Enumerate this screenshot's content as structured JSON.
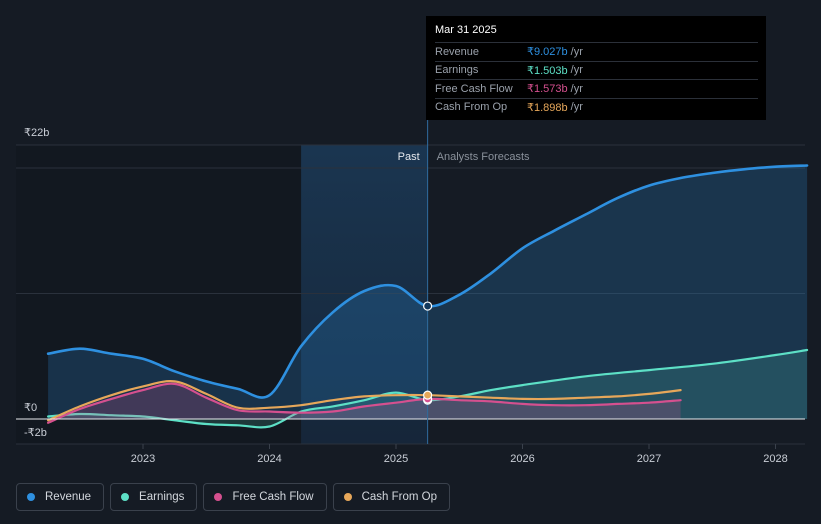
{
  "chart_data": {
    "type": "line",
    "currency_note": "₹ billions",
    "y_axis": {
      "top_label": "₹22b",
      "zero_label": "₹0",
      "bottom_label": "-₹2b",
      "ylim": [
        -2,
        22
      ]
    },
    "x_ticks": [
      "2023",
      "2024",
      "2025",
      "2026",
      "2027",
      "2028"
    ],
    "x_range": [
      2022.25,
      2028.25
    ],
    "past_label": "Past",
    "forecast_label": "Analysts Forecasts",
    "past_region": [
      2024.25,
      2025.25
    ],
    "series": [
      {
        "name": "Revenue",
        "color": "#2e90e0",
        "fill": true,
        "points": [
          [
            2022.25,
            5.2
          ],
          [
            2022.5,
            5.6
          ],
          [
            2022.75,
            5.2
          ],
          [
            2023.0,
            4.8
          ],
          [
            2023.25,
            3.8
          ],
          [
            2023.5,
            3.0
          ],
          [
            2023.75,
            2.4
          ],
          [
            2024.0,
            1.9
          ],
          [
            2024.25,
            5.8
          ],
          [
            2024.5,
            8.5
          ],
          [
            2024.75,
            10.2
          ],
          [
            2025.0,
            10.6
          ],
          [
            2025.25,
            9.0
          ],
          [
            2025.5,
            9.9
          ],
          [
            2025.75,
            11.6
          ],
          [
            2026.0,
            13.6
          ],
          [
            2026.25,
            15.0
          ],
          [
            2026.5,
            16.3
          ],
          [
            2026.75,
            17.6
          ],
          [
            2027.0,
            18.6
          ],
          [
            2027.25,
            19.2
          ],
          [
            2027.5,
            19.6
          ],
          [
            2027.75,
            19.9
          ],
          [
            2028.0,
            20.1
          ],
          [
            2028.25,
            20.2
          ]
        ]
      },
      {
        "name": "Earnings",
        "color": "#5de0c6",
        "fill": true,
        "points": [
          [
            2022.25,
            0.2
          ],
          [
            2022.5,
            0.4
          ],
          [
            2022.75,
            0.3
          ],
          [
            2023.0,
            0.2
          ],
          [
            2023.25,
            -0.1
          ],
          [
            2023.5,
            -0.4
          ],
          [
            2023.75,
            -0.5
          ],
          [
            2024.0,
            -0.6
          ],
          [
            2024.25,
            0.6
          ],
          [
            2024.5,
            1.0
          ],
          [
            2024.75,
            1.5
          ],
          [
            2025.0,
            2.1
          ],
          [
            2025.25,
            1.5
          ],
          [
            2025.5,
            1.8
          ],
          [
            2025.75,
            2.3
          ],
          [
            2026.0,
            2.7
          ],
          [
            2026.5,
            3.4
          ],
          [
            2027.0,
            3.9
          ],
          [
            2027.5,
            4.4
          ],
          [
            2028.0,
            5.1
          ],
          [
            2028.25,
            5.5
          ]
        ]
      },
      {
        "name": "Free Cash Flow",
        "color": "#d5508f",
        "fill": true,
        "points": [
          [
            2022.25,
            -0.3
          ],
          [
            2022.5,
            0.8
          ],
          [
            2022.75,
            1.6
          ],
          [
            2023.0,
            2.3
          ],
          [
            2023.25,
            2.8
          ],
          [
            2023.5,
            1.7
          ],
          [
            2023.75,
            0.7
          ],
          [
            2024.0,
            0.6
          ],
          [
            2024.25,
            0.5
          ],
          [
            2024.5,
            0.6
          ],
          [
            2024.75,
            1.0
          ],
          [
            2025.0,
            1.3
          ],
          [
            2025.25,
            1.6
          ],
          [
            2025.5,
            1.5
          ],
          [
            2025.75,
            1.4
          ],
          [
            2026.0,
            1.2
          ],
          [
            2026.25,
            1.1
          ],
          [
            2026.5,
            1.1
          ],
          [
            2026.75,
            1.2
          ],
          [
            2027.0,
            1.3
          ],
          [
            2027.25,
            1.5
          ]
        ]
      },
      {
        "name": "Cash From Op",
        "color": "#e6a75a",
        "fill": false,
        "points": [
          [
            2022.25,
            -0.1
          ],
          [
            2022.5,
            1.0
          ],
          [
            2022.75,
            1.9
          ],
          [
            2023.0,
            2.6
          ],
          [
            2023.25,
            3.0
          ],
          [
            2023.5,
            2.0
          ],
          [
            2023.75,
            0.9
          ],
          [
            2024.0,
            0.9
          ],
          [
            2024.25,
            1.1
          ],
          [
            2024.5,
            1.5
          ],
          [
            2024.75,
            1.8
          ],
          [
            2025.0,
            1.9
          ],
          [
            2025.25,
            1.9
          ],
          [
            2025.5,
            1.8
          ],
          [
            2025.75,
            1.7
          ],
          [
            2026.0,
            1.6
          ],
          [
            2026.25,
            1.6
          ],
          [
            2026.5,
            1.7
          ],
          [
            2026.75,
            1.8
          ],
          [
            2027.0,
            2.0
          ],
          [
            2027.25,
            2.3
          ]
        ]
      }
    ],
    "highlight_x": 2025.25
  },
  "tooltip": {
    "date": "Mar 31 2025",
    "rows": [
      {
        "label": "Revenue",
        "value": "₹9.027b",
        "unit": "/yr",
        "color": "#2e90e0"
      },
      {
        "label": "Earnings",
        "value": "₹1.503b",
        "unit": "/yr",
        "color": "#5de0c6"
      },
      {
        "label": "Free Cash Flow",
        "value": "₹1.573b",
        "unit": "/yr",
        "color": "#d5508f"
      },
      {
        "label": "Cash From Op",
        "value": "₹1.898b",
        "unit": "/yr",
        "color": "#e6a75a"
      }
    ]
  },
  "legend": [
    {
      "label": "Revenue",
      "color": "#2e90e0"
    },
    {
      "label": "Earnings",
      "color": "#5de0c6"
    },
    {
      "label": "Free Cash Flow",
      "color": "#d5508f"
    },
    {
      "label": "Cash From Op",
      "color": "#e6a75a"
    }
  ]
}
